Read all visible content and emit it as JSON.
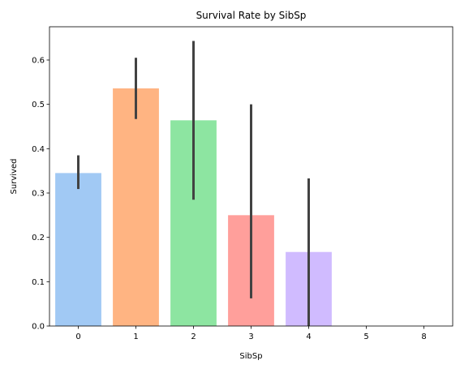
{
  "chart_data": {
    "type": "bar",
    "title": "Survival Rate by SibSp",
    "xlabel": "SibSp",
    "ylabel": "Survived",
    "categories": [
      "0",
      "1",
      "2",
      "3",
      "4",
      "5",
      "8"
    ],
    "values": [
      0.345,
      0.536,
      0.464,
      0.25,
      0.167,
      0.0,
      0.0
    ],
    "ci_low": [
      0.309,
      0.467,
      0.285,
      0.0625,
      0.0,
      0.0,
      0.0
    ],
    "ci_high": [
      0.385,
      0.605,
      0.643,
      0.5,
      0.333,
      0.0,
      0.0
    ],
    "colors": [
      "#a1c9f4",
      "#ffb482",
      "#8de5a1",
      "#ff9f9b",
      "#d0bbff",
      "#debb9b",
      "#fab0e4"
    ],
    "errorbar_color": "#424242",
    "ylim": [
      0,
      0.675
    ],
    "yticks": [
      "0.0",
      "0.1",
      "0.2",
      "0.3",
      "0.4",
      "0.5",
      "0.6"
    ],
    "grid": false,
    "legend": "none"
  }
}
